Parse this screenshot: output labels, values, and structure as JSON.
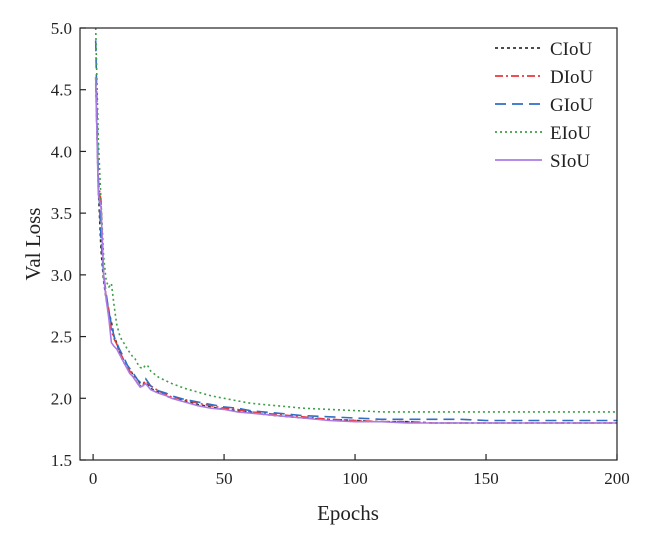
{
  "chart_data": {
    "type": "line",
    "xlabel": "Epochs",
    "ylabel": "Val Loss",
    "xlim": [
      -5,
      200
    ],
    "ylim": [
      1.5,
      5.0
    ],
    "xticks": [
      0,
      50,
      100,
      150,
      200
    ],
    "yticks": [
      1.5,
      2.0,
      2.5,
      3.0,
      3.5,
      4.0,
      4.5,
      5.0
    ],
    "xtick_labels": [
      "0",
      "50",
      "100",
      "150",
      "200"
    ],
    "ytick_labels": [
      "1.5",
      "2.0",
      "2.5",
      "3.0",
      "3.5",
      "4.0",
      "4.5",
      "5.0"
    ],
    "grid": false,
    "legend_position": "top-right",
    "series": [
      {
        "name": "CIoU",
        "color": "#333333",
        "dash": "3,3",
        "points": [
          [
            1,
            4.6
          ],
          [
            2,
            3.7
          ],
          [
            3,
            3.2
          ],
          [
            4,
            2.95
          ],
          [
            5,
            2.8
          ],
          [
            6,
            2.7
          ],
          [
            7,
            2.62
          ],
          [
            8,
            2.5
          ],
          [
            9,
            2.45
          ],
          [
            10,
            2.38
          ],
          [
            11,
            2.32
          ],
          [
            12,
            2.28
          ],
          [
            13,
            2.26
          ],
          [
            14,
            2.24
          ],
          [
            15,
            2.2
          ],
          [
            16,
            2.18
          ],
          [
            17,
            2.15
          ],
          [
            18,
            2.12
          ],
          [
            19,
            2.11
          ],
          [
            20,
            2.13
          ],
          [
            22,
            2.08
          ],
          [
            25,
            2.05
          ],
          [
            28,
            2.02
          ],
          [
            30,
            2.0
          ],
          [
            35,
            1.98
          ],
          [
            40,
            1.95
          ],
          [
            45,
            1.93
          ],
          [
            50,
            1.91
          ],
          [
            55,
            1.9
          ],
          [
            60,
            1.89
          ],
          [
            65,
            1.87
          ],
          [
            70,
            1.86
          ],
          [
            75,
            1.85
          ],
          [
            80,
            1.84
          ],
          [
            90,
            1.83
          ],
          [
            100,
            1.82
          ],
          [
            110,
            1.81
          ],
          [
            120,
            1.81
          ],
          [
            130,
            1.8
          ],
          [
            140,
            1.8
          ],
          [
            150,
            1.8
          ],
          [
            160,
            1.8
          ],
          [
            170,
            1.8
          ],
          [
            180,
            1.8
          ],
          [
            190,
            1.8
          ],
          [
            200,
            1.8
          ]
        ]
      },
      {
        "name": "DIoU",
        "color": "#e8393a",
        "dash": "8,3,2,3",
        "points": [
          [
            1,
            4.55
          ],
          [
            2,
            3.75
          ],
          [
            3,
            3.6
          ],
          [
            4,
            3.0
          ],
          [
            5,
            2.82
          ],
          [
            6,
            2.72
          ],
          [
            7,
            2.55
          ],
          [
            8,
            2.48
          ],
          [
            9,
            2.44
          ],
          [
            10,
            2.38
          ],
          [
            11,
            2.34
          ],
          [
            12,
            2.3
          ],
          [
            13,
            2.25
          ],
          [
            14,
            2.22
          ],
          [
            15,
            2.2
          ],
          [
            16,
            2.16
          ],
          [
            17,
            2.12
          ],
          [
            18,
            2.1
          ],
          [
            19,
            2.12
          ],
          [
            20,
            2.14
          ],
          [
            22,
            2.1
          ],
          [
            25,
            2.06
          ],
          [
            28,
            2.03
          ],
          [
            30,
            2.01
          ],
          [
            35,
            1.99
          ],
          [
            40,
            1.96
          ],
          [
            45,
            1.94
          ],
          [
            50,
            1.92
          ],
          [
            55,
            1.91
          ],
          [
            60,
            1.89
          ],
          [
            65,
            1.88
          ],
          [
            70,
            1.87
          ],
          [
            75,
            1.86
          ],
          [
            80,
            1.85
          ],
          [
            90,
            1.83
          ],
          [
            100,
            1.82
          ],
          [
            110,
            1.81
          ],
          [
            120,
            1.81
          ],
          [
            130,
            1.8
          ],
          [
            140,
            1.8
          ],
          [
            150,
            1.8
          ],
          [
            160,
            1.8
          ],
          [
            170,
            1.8
          ],
          [
            180,
            1.8
          ],
          [
            190,
            1.8
          ],
          [
            200,
            1.8
          ]
        ]
      },
      {
        "name": "GIoU",
        "color": "#2f6fc4",
        "dash": "11,6",
        "points": [
          [
            1,
            4.9
          ],
          [
            2,
            3.8
          ],
          [
            3,
            3.3
          ],
          [
            4,
            3.0
          ],
          [
            5,
            2.85
          ],
          [
            6,
            2.7
          ],
          [
            7,
            2.6
          ],
          [
            8,
            2.5
          ],
          [
            9,
            2.45
          ],
          [
            10,
            2.4
          ],
          [
            11,
            2.36
          ],
          [
            12,
            2.32
          ],
          [
            13,
            2.27
          ],
          [
            14,
            2.24
          ],
          [
            15,
            2.22
          ],
          [
            16,
            2.18
          ],
          [
            17,
            2.15
          ],
          [
            18,
            2.13
          ],
          [
            19,
            2.14
          ],
          [
            20,
            2.16
          ],
          [
            22,
            2.1
          ],
          [
            25,
            2.06
          ],
          [
            28,
            2.04
          ],
          [
            30,
            2.02
          ],
          [
            35,
            1.99
          ],
          [
            40,
            1.97
          ],
          [
            45,
            1.95
          ],
          [
            50,
            1.93
          ],
          [
            55,
            1.92
          ],
          [
            60,
            1.9
          ],
          [
            65,
            1.89
          ],
          [
            70,
            1.88
          ],
          [
            75,
            1.87
          ],
          [
            80,
            1.86
          ],
          [
            90,
            1.85
          ],
          [
            100,
            1.84
          ],
          [
            110,
            1.83
          ],
          [
            120,
            1.83
          ],
          [
            130,
            1.83
          ],
          [
            140,
            1.83
          ],
          [
            150,
            1.82
          ],
          [
            160,
            1.82
          ],
          [
            170,
            1.82
          ],
          [
            180,
            1.82
          ],
          [
            190,
            1.82
          ],
          [
            200,
            1.82
          ]
        ]
      },
      {
        "name": "EIoU",
        "color": "#3ca046",
        "dash": "2,3",
        "points": [
          [
            1,
            5.0
          ],
          [
            2,
            4.1
          ],
          [
            3,
            3.6
          ],
          [
            4,
            3.15
          ],
          [
            5,
            2.95
          ],
          [
            6,
            2.9
          ],
          [
            7,
            2.93
          ],
          [
            8,
            2.75
          ],
          [
            9,
            2.6
          ],
          [
            10,
            2.52
          ],
          [
            11,
            2.47
          ],
          [
            12,
            2.44
          ],
          [
            13,
            2.4
          ],
          [
            14,
            2.37
          ],
          [
            15,
            2.34
          ],
          [
            16,
            2.32
          ],
          [
            17,
            2.28
          ],
          [
            18,
            2.25
          ],
          [
            19,
            2.24
          ],
          [
            20,
            2.27
          ],
          [
            21,
            2.26
          ],
          [
            22,
            2.22
          ],
          [
            25,
            2.17
          ],
          [
            28,
            2.14
          ],
          [
            30,
            2.12
          ],
          [
            35,
            2.08
          ],
          [
            40,
            2.05
          ],
          [
            45,
            2.02
          ],
          [
            50,
            2.0
          ],
          [
            55,
            1.98
          ],
          [
            60,
            1.96
          ],
          [
            65,
            1.95
          ],
          [
            70,
            1.94
          ],
          [
            75,
            1.93
          ],
          [
            80,
            1.92
          ],
          [
            90,
            1.91
          ],
          [
            100,
            1.9
          ],
          [
            110,
            1.89
          ],
          [
            120,
            1.89
          ],
          [
            130,
            1.89
          ],
          [
            140,
            1.89
          ],
          [
            150,
            1.89
          ],
          [
            160,
            1.89
          ],
          [
            170,
            1.89
          ],
          [
            180,
            1.89
          ],
          [
            190,
            1.89
          ],
          [
            200,
            1.89
          ]
        ]
      },
      {
        "name": "SIoU",
        "color": "#a97be6",
        "dash": "",
        "points": [
          [
            1,
            4.6
          ],
          [
            2,
            3.65
          ],
          [
            3,
            3.55
          ],
          [
            4,
            3.0
          ],
          [
            5,
            2.8
          ],
          [
            6,
            2.65
          ],
          [
            7,
            2.45
          ],
          [
            8,
            2.42
          ],
          [
            9,
            2.4
          ],
          [
            10,
            2.36
          ],
          [
            11,
            2.32
          ],
          [
            12,
            2.28
          ],
          [
            13,
            2.24
          ],
          [
            14,
            2.2
          ],
          [
            15,
            2.18
          ],
          [
            16,
            2.15
          ],
          [
            17,
            2.12
          ],
          [
            18,
            2.09
          ],
          [
            19,
            2.1
          ],
          [
            20,
            2.12
          ],
          [
            22,
            2.07
          ],
          [
            25,
            2.04
          ],
          [
            28,
            2.02
          ],
          [
            30,
            2.0
          ],
          [
            35,
            1.97
          ],
          [
            40,
            1.94
          ],
          [
            45,
            1.92
          ],
          [
            50,
            1.91
          ],
          [
            55,
            1.89
          ],
          [
            60,
            1.88
          ],
          [
            65,
            1.87
          ],
          [
            70,
            1.86
          ],
          [
            75,
            1.85
          ],
          [
            80,
            1.84
          ],
          [
            90,
            1.82
          ],
          [
            100,
            1.81
          ],
          [
            110,
            1.81
          ],
          [
            120,
            1.8
          ],
          [
            130,
            1.8
          ],
          [
            140,
            1.8
          ],
          [
            150,
            1.8
          ],
          [
            160,
            1.8
          ],
          [
            170,
            1.8
          ],
          [
            180,
            1.8
          ],
          [
            190,
            1.8
          ],
          [
            200,
            1.8
          ]
        ]
      }
    ]
  }
}
